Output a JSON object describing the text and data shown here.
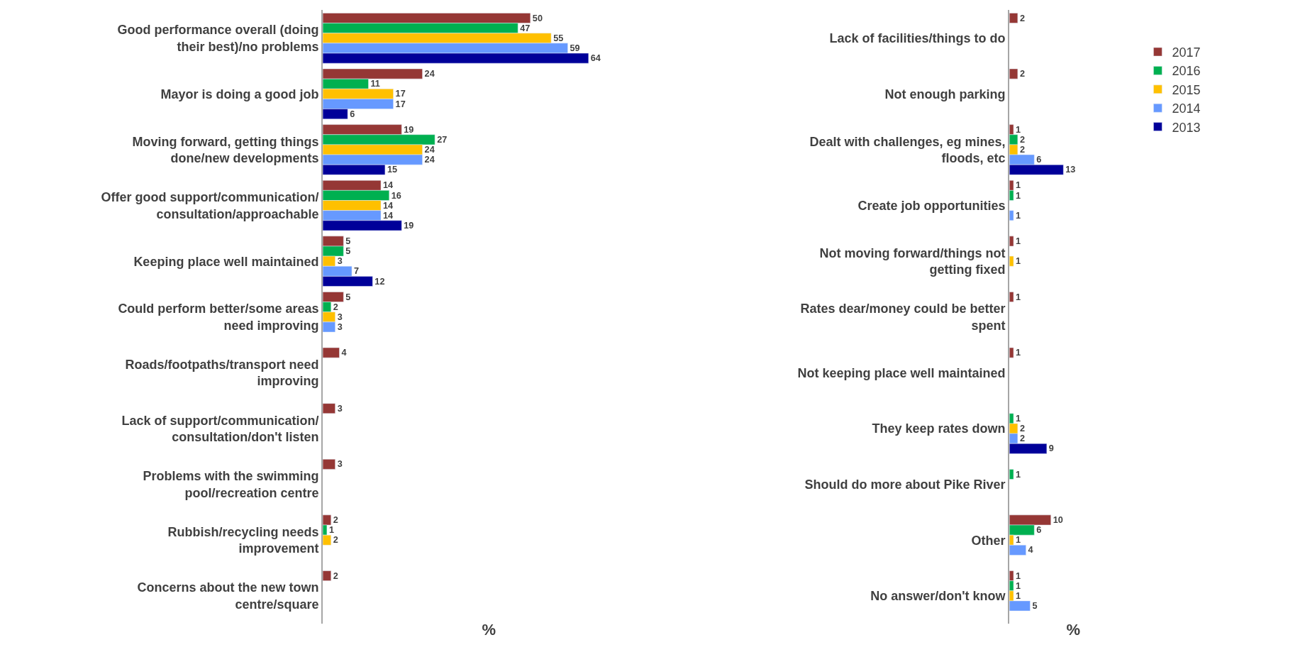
{
  "chart_data": [
    {
      "type": "bar",
      "orientation": "horizontal",
      "data_labels": true,
      "tick_labels": "y",
      "legend": "right",
      "xlabel": "%",
      "categories": [
        "Good performance overall (doing their best)/no problems",
        "Mayor is doing a good job",
        "Moving forward, getting things done/new developments",
        "Offer good support/communication/ consultation/approachable",
        "Keeping place well maintained",
        "Could perform better/some areas need improving",
        "Roads/footpaths/transport need improving",
        "Lack of support/communication/ consultation/don't listen",
        "Problems with the swimming pool/recreation centre",
        "Rubbish/recycling needs improvement",
        "Concerns about the new town centre/square"
      ],
      "series": [
        {
          "name": "2017",
          "color": "#953735",
          "values": [
            50,
            24,
            19,
            14,
            5,
            5,
            4,
            3,
            3,
            2,
            2
          ]
        },
        {
          "name": "2016",
          "color": "#00b050",
          "values": [
            47,
            11,
            27,
            16,
            5,
            2,
            null,
            null,
            null,
            1,
            null
          ]
        },
        {
          "name": "2015",
          "color": "#ffc000",
          "values": [
            55,
            17,
            24,
            14,
            3,
            3,
            null,
            null,
            null,
            2,
            null
          ]
        },
        {
          "name": "2014",
          "color": "#6699ff",
          "values": [
            59,
            17,
            24,
            14,
            7,
            3,
            null,
            null,
            null,
            null,
            null
          ]
        },
        {
          "name": "2013",
          "color": "#000099",
          "values": [
            64,
            6,
            15,
            19,
            12,
            null,
            null,
            null,
            null,
            null,
            null
          ]
        }
      ]
    },
    {
      "type": "bar",
      "orientation": "horizontal",
      "data_labels": true,
      "tick_labels": "y",
      "legend": "right",
      "xlabel": "%",
      "categories": [
        "Lack of facilities/things to do",
        "Not enough parking",
        "Dealt with challenges, eg mines, floods, etc",
        "Create job opportunities",
        "Not moving forward/things not getting fixed",
        "Rates dear/money could be better spent",
        "Not keeping place well maintained",
        "They keep rates down",
        "Should do more about Pike River",
        "Other",
        "No answer/don't know"
      ],
      "series": [
        {
          "name": "2017",
          "color": "#953735",
          "values": [
            2,
            2,
            1,
            1,
            1,
            1,
            1,
            null,
            null,
            10,
            1
          ]
        },
        {
          "name": "2016",
          "color": "#00b050",
          "values": [
            null,
            null,
            2,
            1,
            null,
            null,
            null,
            1,
            1,
            6,
            1
          ]
        },
        {
          "name": "2015",
          "color": "#ffc000",
          "values": [
            null,
            null,
            2,
            null,
            1,
            null,
            null,
            2,
            null,
            1,
            1
          ]
        },
        {
          "name": "2014",
          "color": "#6699ff",
          "values": [
            null,
            null,
            6,
            1,
            null,
            null,
            null,
            2,
            null,
            4,
            5
          ]
        },
        {
          "name": "2013",
          "color": "#000099",
          "values": [
            null,
            null,
            13,
            null,
            null,
            null,
            null,
            9,
            null,
            null,
            null
          ]
        }
      ]
    }
  ]
}
